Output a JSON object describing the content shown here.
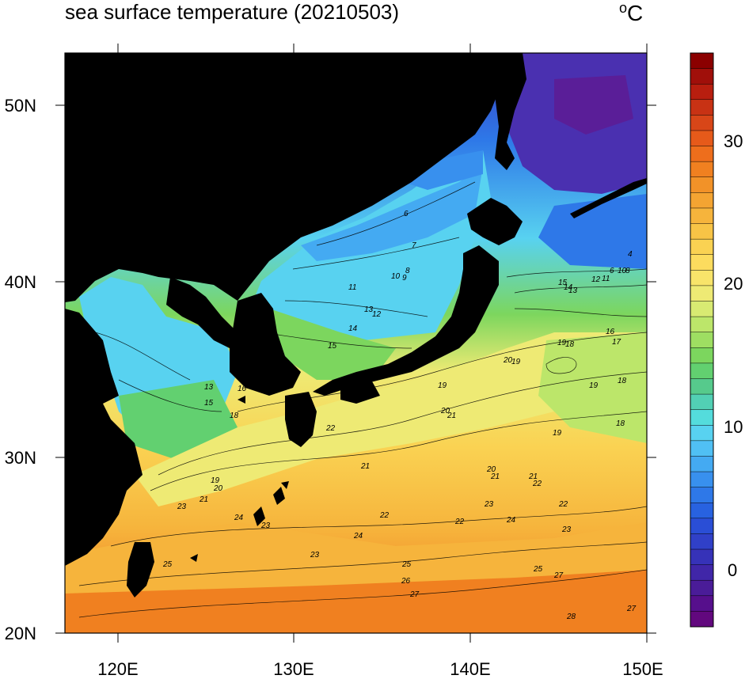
{
  "title": "sea surface temperature (20210503)",
  "unit": {
    "symbol": "o",
    "letter": "C"
  },
  "axes": {
    "lon_labels": [
      "120E",
      "130E",
      "140E",
      "150E"
    ],
    "lat_labels": [
      "50N",
      "40N",
      "30N",
      "20N"
    ]
  },
  "colorbar": {
    "labels": [
      "30",
      "20",
      "10",
      "0"
    ],
    "colors": [
      "#8b0000",
      "#a00f0a",
      "#b81e0f",
      "#c83214",
      "#d84618",
      "#e65a1a",
      "#ee6e1c",
      "#f08020",
      "#f29228",
      "#f4a432",
      "#f6b43c",
      "#f8c446",
      "#fad252",
      "#fcdc5e",
      "#f8e46a",
      "#eeea74",
      "#d8ea72",
      "#bce66a",
      "#9ede62",
      "#7cd65e",
      "#62d070",
      "#56ca8c",
      "#52d0b4",
      "#54dcdc",
      "#58d2f0",
      "#50c0f4",
      "#44aaf2",
      "#3890ee",
      "#2e78e8",
      "#2862e0",
      "#2a4ed6",
      "#3040c8",
      "#3632b8",
      "#4026a8",
      "#4a1c98",
      "#560f8c",
      "#62087e"
    ]
  },
  "contour_labels": [
    {
      "t": "6"
    },
    {
      "t": "7"
    },
    {
      "t": "8"
    },
    {
      "t": "10"
    },
    {
      "t": "9"
    },
    {
      "t": "11"
    },
    {
      "t": "13"
    },
    {
      "t": "12"
    },
    {
      "t": "14"
    },
    {
      "t": "15"
    },
    {
      "t": "13"
    },
    {
      "t": "16"
    },
    {
      "t": "15"
    },
    {
      "t": "18"
    },
    {
      "t": "20"
    },
    {
      "t": "19"
    },
    {
      "t": "19"
    },
    {
      "t": "20"
    },
    {
      "t": "21"
    },
    {
      "t": "22"
    },
    {
      "t": "21"
    },
    {
      "t": "19"
    },
    {
      "t": "20"
    },
    {
      "t": "21"
    },
    {
      "t": "22"
    },
    {
      "t": "23"
    },
    {
      "t": "23"
    },
    {
      "t": "22"
    },
    {
      "t": "24"
    },
    {
      "t": "23"
    },
    {
      "t": "24"
    },
    {
      "t": "25"
    },
    {
      "t": "25"
    },
    {
      "t": "26"
    },
    {
      "t": "27"
    },
    {
      "t": "27"
    },
    {
      "t": "28"
    },
    {
      "t": "27"
    },
    {
      "t": "19"
    },
    {
      "t": "18"
    },
    {
      "t": "19"
    },
    {
      "t": "18"
    },
    {
      "t": "18"
    },
    {
      "t": "19"
    },
    {
      "t": "16"
    },
    {
      "t": "17"
    },
    {
      "t": "15"
    },
    {
      "t": "14"
    },
    {
      "t": "13"
    },
    {
      "t": "12"
    },
    {
      "t": "11"
    },
    {
      "t": "10"
    },
    {
      "t": "8"
    },
    {
      "t": "6"
    },
    {
      "t": "4"
    },
    {
      "t": "1"
    },
    {
      "t": "22"
    },
    {
      "t": "23"
    },
    {
      "t": "23"
    },
    {
      "t": "24"
    },
    {
      "t": "25"
    },
    {
      "t": "21"
    },
    {
      "t": "22"
    },
    {
      "t": "20"
    },
    {
      "t": "21"
    }
  ]
}
